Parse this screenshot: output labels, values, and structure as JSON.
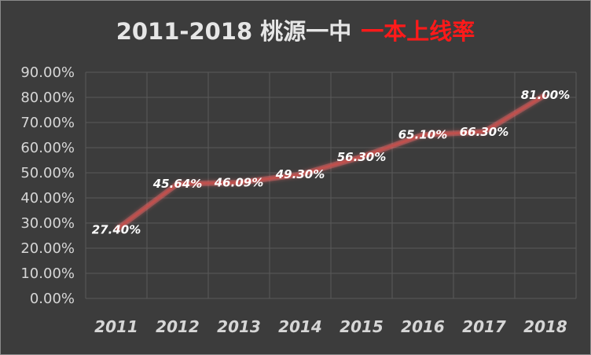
{
  "title": {
    "main": "2011-2018 桃源一中",
    "accent": "一本上线率"
  },
  "colors": {
    "background": "#3c3c3c",
    "gridline": "#5a5a5a",
    "line": "#c0504d",
    "line_glow": "#ff6b6b",
    "title_accent": "#ff1a1a",
    "tick_text": "#d6d6d6"
  },
  "chart_data": {
    "type": "line",
    "title": "2011-2018 桃源一中 一本上线率",
    "xlabel": "",
    "ylabel": "",
    "categories": [
      "2011",
      "2012",
      "2013",
      "2014",
      "2015",
      "2016",
      "2017",
      "2018"
    ],
    "series": [
      {
        "values": [
          27.4,
          45.64,
          46.09,
          49.3,
          56.3,
          65.1,
          66.3,
          81.0
        ],
        "labels": [
          "27.40%",
          "45.64%",
          "46.09%",
          "49.30%",
          "56.30%",
          "65.10%",
          "66.30%",
          "81.00%"
        ]
      }
    ],
    "ylim": [
      0,
      90
    ],
    "yticks": [
      0,
      10,
      20,
      30,
      40,
      50,
      60,
      70,
      80,
      90
    ],
    "ytick_labels": [
      "0.00%",
      "10.00%",
      "20.00%",
      "30.00%",
      "40.00%",
      "50.00%",
      "60.00%",
      "70.00%",
      "80.00%",
      "90.00%"
    ],
    "grid": true,
    "legend": "none"
  }
}
